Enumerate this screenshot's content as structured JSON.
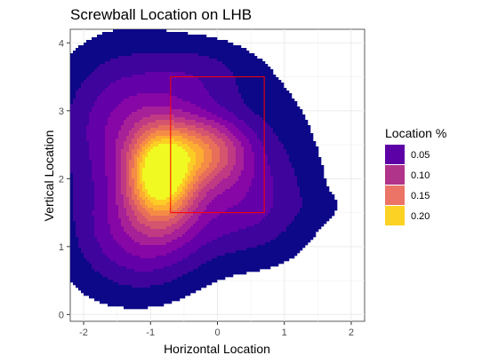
{
  "chart_data": {
    "type": "density-contour",
    "title": "Screwball Location on LHB",
    "xlabel": "Horizontal Location",
    "ylabel": "Vertical Location",
    "xlim": [
      -2.2,
      2.2
    ],
    "ylim": [
      -0.1,
      4.2
    ],
    "x_ticks": [
      -2,
      -1,
      0,
      1,
      2
    ],
    "y_ticks": [
      0,
      1,
      2,
      3,
      4
    ],
    "grid": true,
    "legend": {
      "title": "Location %",
      "position": "right",
      "entries": [
        {
          "label": "0.05",
          "color": "#5c01a6"
        },
        {
          "label": "0.10",
          "color": "#b0348a"
        },
        {
          "label": "0.15",
          "color": "#eb7467"
        },
        {
          "label": "0.20",
          "color": "#fcd225"
        }
      ]
    },
    "strike_zone": {
      "x": [
        -0.7,
        0.7
      ],
      "y": [
        1.5,
        3.5
      ],
      "color": "#ff0000"
    },
    "density_peak": {
      "x": -0.8,
      "y": 2.0
    },
    "level_colors": [
      "#0d0887",
      "#3e049c",
      "#6300a7",
      "#8606a6",
      "#a62098",
      "#c03a83",
      "#d5546e",
      "#e76f5a",
      "#f58c46",
      "#fdad32",
      "#fcce25",
      "#f0f921"
    ]
  }
}
